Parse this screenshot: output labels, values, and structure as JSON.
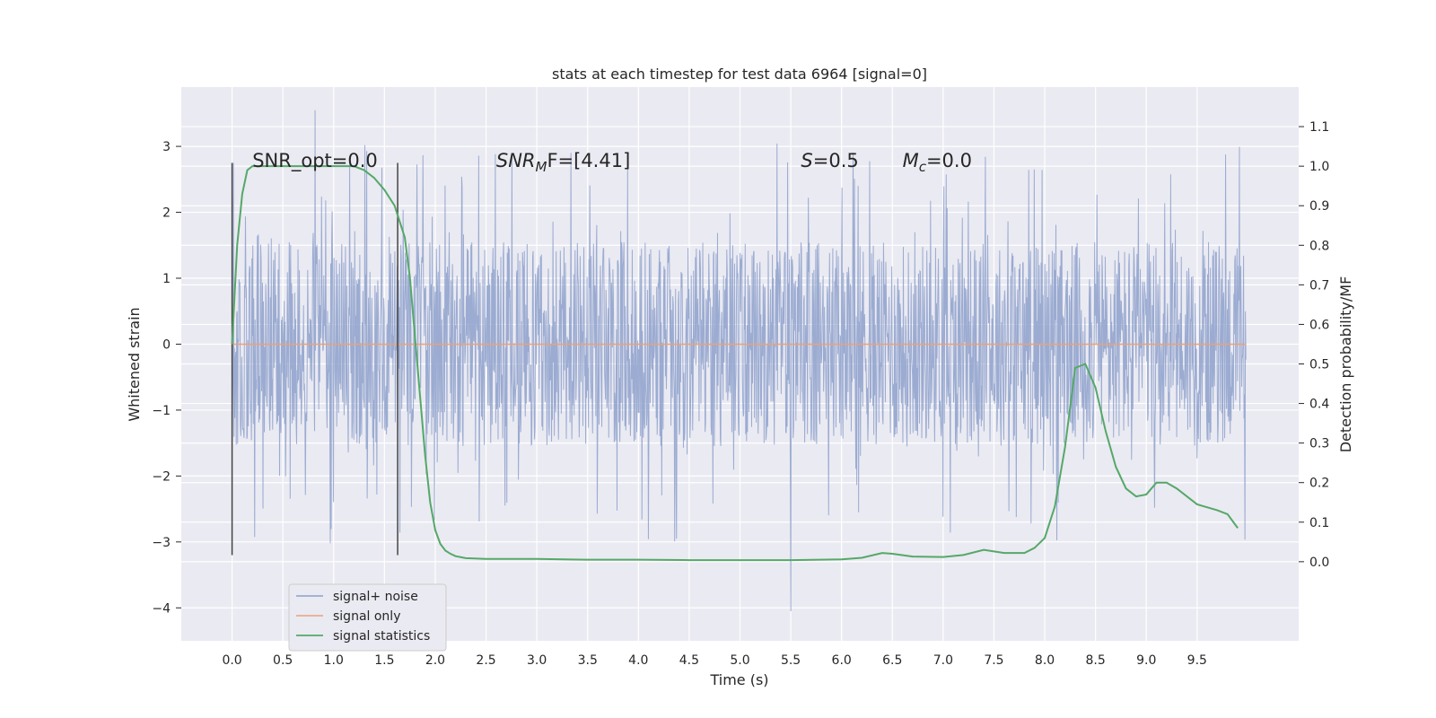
{
  "chart_data": {
    "type": "line",
    "title": "stats at each timestep for test data 6964 [signal=0]",
    "xlabel": "Time (s)",
    "ylabel": "Whitened strain",
    "y2label": "Detection probability/MF",
    "xlim": [
      -0.5,
      10.5
    ],
    "ylim": [
      -4.5,
      3.9
    ],
    "y2lim": [
      -0.2,
      1.2
    ],
    "x_ticks": [
      0.0,
      0.5,
      1.0,
      1.5,
      2.0,
      2.5,
      3.0,
      3.5,
      4.0,
      4.5,
      5.0,
      5.5,
      6.0,
      6.5,
      7.0,
      7.5,
      8.0,
      8.5,
      9.0,
      9.5
    ],
    "y_ticks": [
      -4,
      -3,
      -2,
      -1,
      0,
      1,
      2,
      3
    ],
    "y2_ticks": [
      0.0,
      0.1,
      0.2,
      0.3,
      0.4,
      0.5,
      0.6,
      0.7,
      0.8,
      0.9,
      1.0,
      1.1
    ],
    "grid": true,
    "legend_position": "lower-left",
    "vertical_markers": [
      0.0,
      1.63
    ],
    "vertical_marker_range": [
      -3.2,
      2.75
    ],
    "annotations": [
      {
        "text": "SNR_opt=0.0",
        "x": 0.2,
        "y": 2.8
      },
      {
        "text_italic": "SNR",
        "text_sub": "M",
        "text_rest": "F=[4.41]",
        "x": 2.6,
        "y": 2.8
      },
      {
        "text_italic": "S",
        "text_rest": "=0.5",
        "x": 5.6,
        "y": 2.8
      },
      {
        "text_italic": "M",
        "text_sub": "c",
        "text_rest": "=0.0",
        "x": 6.6,
        "y": 2.8
      }
    ],
    "series": [
      {
        "name": "signal+ noise",
        "color": "#8da0cb",
        "axis": "left",
        "x_range": [
          0.0,
          9.98
        ],
        "core_amplitude": 1.55,
        "spike_amplitude": 3.55,
        "min_value": -4.05
      },
      {
        "name": "signal only",
        "color": "#e8a27c",
        "axis": "left",
        "x": [
          0.0,
          9.98
        ],
        "y": [
          0.0,
          0.0
        ]
      },
      {
        "name": "signal statistics",
        "color": "#55a868",
        "axis": "right",
        "x": [
          0.0,
          0.05,
          0.1,
          0.15,
          0.2,
          0.3,
          0.5,
          0.8,
          1.0,
          1.2,
          1.3,
          1.4,
          1.5,
          1.6,
          1.7,
          1.75,
          1.8,
          1.85,
          1.9,
          1.95,
          2.0,
          2.05,
          2.1,
          2.15,
          2.2,
          2.3,
          2.5,
          3.0,
          3.5,
          4.0,
          4.5,
          5.0,
          5.5,
          6.0,
          6.2,
          6.4,
          6.5,
          6.7,
          7.0,
          7.2,
          7.4,
          7.6,
          7.8,
          7.9,
          8.0,
          8.1,
          8.2,
          8.3,
          8.4,
          8.5,
          8.6,
          8.7,
          8.8,
          8.9,
          9.0,
          9.1,
          9.2,
          9.3,
          9.5,
          9.7,
          9.8,
          9.9
        ],
        "y": [
          0.55,
          0.8,
          0.93,
          0.99,
          1.0,
          1.0,
          1.0,
          1.0,
          1.0,
          1.0,
          0.99,
          0.97,
          0.94,
          0.9,
          0.82,
          0.72,
          0.57,
          0.42,
          0.27,
          0.15,
          0.08,
          0.045,
          0.028,
          0.02,
          0.014,
          0.009,
          0.007,
          0.007,
          0.005,
          0.005,
          0.004,
          0.004,
          0.004,
          0.006,
          0.01,
          0.022,
          0.02,
          0.013,
          0.012,
          0.017,
          0.03,
          0.022,
          0.022,
          0.035,
          0.06,
          0.14,
          0.29,
          0.49,
          0.5,
          0.44,
          0.33,
          0.24,
          0.185,
          0.165,
          0.17,
          0.2,
          0.2,
          0.185,
          0.145,
          0.13,
          0.12,
          0.085
        ]
      }
    ]
  }
}
